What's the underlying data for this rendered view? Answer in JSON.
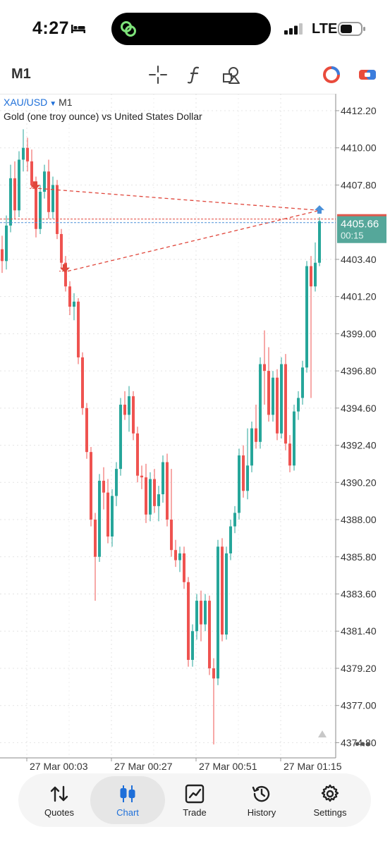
{
  "status_bar": {
    "time": "4:27",
    "network": "LTE"
  },
  "toolbar": {
    "timeframe": "M1",
    "icons": [
      "crosshair-icon",
      "function-icon",
      "objects-icon",
      "account-icon",
      "trade-toggle-icon"
    ]
  },
  "symbol": {
    "name": "XAU/USD",
    "timeframe": "M1",
    "description": "Gold (one troy ounce) vs United States Dollar"
  },
  "price_tag": {
    "price": "4405.66",
    "countdown": "00:15"
  },
  "colors": {
    "bull": "#26a69a",
    "bear": "#ef5350",
    "price_tag": "#55a79a",
    "bid_line": "#4a90d9",
    "ask_line": "#e0463b",
    "accent": "#1e6fd9"
  },
  "chart_data": {
    "type": "candlestick",
    "symbol": "XAU/USD",
    "timeframe": "M1",
    "x_ticks": [
      "27 Mar 00:03",
      "27 Mar 00:27",
      "27 Mar 00:51",
      "27 Mar 01:15"
    ],
    "y_ticks": [
      "4412.20",
      "4410.00",
      "4407.80",
      "4403.40",
      "4401.20",
      "4399.00",
      "4396.80",
      "4394.60",
      "4392.40",
      "4390.20",
      "4388.00",
      "4385.80",
      "4383.60",
      "4381.40",
      "4379.20",
      "4377.00",
      "4374.80"
    ],
    "y_range": [
      4373.9,
      4413.2
    ],
    "current_price": 4405.66,
    "grid": true,
    "candles": [
      {
        "o": 4404.0,
        "h": 4404.8,
        "l": 4402.6,
        "c": 4403.3
      },
      {
        "o": 4403.3,
        "h": 4406.0,
        "l": 4402.8,
        "c": 4405.4
      },
      {
        "o": 4405.4,
        "h": 4409.0,
        "l": 4405.0,
        "c": 4408.2
      },
      {
        "o": 4408.2,
        "h": 4409.2,
        "l": 4405.8,
        "c": 4406.3
      },
      {
        "o": 4406.3,
        "h": 4409.8,
        "l": 4405.9,
        "c": 4409.3
      },
      {
        "o": 4409.3,
        "h": 4411.1,
        "l": 4408.6,
        "c": 4410.0
      },
      {
        "o": 4410.0,
        "h": 4410.6,
        "l": 4408.6,
        "c": 4409.2
      },
      {
        "o": 4409.2,
        "h": 4409.9,
        "l": 4407.6,
        "c": 4407.8
      },
      {
        "o": 4407.8,
        "h": 4408.3,
        "l": 4404.7,
        "c": 4405.2
      },
      {
        "o": 4405.2,
        "h": 4407.8,
        "l": 4404.9,
        "c": 4407.4
      },
      {
        "o": 4407.4,
        "h": 4409.0,
        "l": 4407.0,
        "c": 4408.6
      },
      {
        "o": 4408.6,
        "h": 4409.3,
        "l": 4405.8,
        "c": 4406.2
      },
      {
        "o": 4406.2,
        "h": 4408.3,
        "l": 4405.8,
        "c": 4407.8
      },
      {
        "o": 4407.8,
        "h": 4408.1,
        "l": 4404.6,
        "c": 4404.9
      },
      {
        "o": 4404.9,
        "h": 4405.2,
        "l": 4402.8,
        "c": 4403.2
      },
      {
        "o": 4403.2,
        "h": 4403.6,
        "l": 4401.5,
        "c": 4401.8
      },
      {
        "o": 4401.8,
        "h": 4402.1,
        "l": 4400.1,
        "c": 4400.6
      },
      {
        "o": 4400.6,
        "h": 4401.4,
        "l": 4399.8,
        "c": 4400.9
      },
      {
        "o": 4400.9,
        "h": 4401.1,
        "l": 4397.2,
        "c": 4397.6
      },
      {
        "o": 4397.6,
        "h": 4397.9,
        "l": 4394.2,
        "c": 4394.6
      },
      {
        "o": 4394.6,
        "h": 4394.9,
        "l": 4391.6,
        "c": 4392.0
      },
      {
        "o": 4392.0,
        "h": 4392.3,
        "l": 4387.6,
        "c": 4388.0
      },
      {
        "o": 4388.0,
        "h": 4388.4,
        "l": 4383.2,
        "c": 4385.8
      },
      {
        "o": 4385.8,
        "h": 4390.7,
        "l": 4385.5,
        "c": 4390.3
      },
      {
        "o": 4390.3,
        "h": 4391.1,
        "l": 4388.6,
        "c": 4389.6
      },
      {
        "o": 4389.6,
        "h": 4390.4,
        "l": 4386.6,
        "c": 4387.0
      },
      {
        "o": 4387.0,
        "h": 4389.8,
        "l": 4386.4,
        "c": 4389.4
      },
      {
        "o": 4389.4,
        "h": 4391.4,
        "l": 4388.8,
        "c": 4391.0
      },
      {
        "o": 4391.0,
        "h": 4395.2,
        "l": 4390.6,
        "c": 4394.8
      },
      {
        "o": 4394.8,
        "h": 4395.6,
        "l": 4393.9,
        "c": 4394.2
      },
      {
        "o": 4394.2,
        "h": 4395.9,
        "l": 4393.2,
        "c": 4395.3
      },
      {
        "o": 4395.3,
        "h": 4395.6,
        "l": 4392.7,
        "c": 4393.1
      },
      {
        "o": 4393.1,
        "h": 4393.5,
        "l": 4390.2,
        "c": 4390.6
      },
      {
        "o": 4390.6,
        "h": 4391.2,
        "l": 4389.8,
        "c": 4390.5
      },
      {
        "o": 4390.5,
        "h": 4391.3,
        "l": 4387.8,
        "c": 4388.3
      },
      {
        "o": 4388.3,
        "h": 4390.8,
        "l": 4387.9,
        "c": 4390.4
      },
      {
        "o": 4390.4,
        "h": 4391.0,
        "l": 4388.4,
        "c": 4388.8
      },
      {
        "o": 4388.8,
        "h": 4390.0,
        "l": 4387.9,
        "c": 4389.5
      },
      {
        "o": 4389.5,
        "h": 4391.8,
        "l": 4389.0,
        "c": 4391.4
      },
      {
        "o": 4391.4,
        "h": 4391.9,
        "l": 4387.6,
        "c": 4388.0
      },
      {
        "o": 4388.0,
        "h": 4391.0,
        "l": 4385.8,
        "c": 4386.2
      },
      {
        "o": 4386.2,
        "h": 4386.8,
        "l": 4385.2,
        "c": 4385.6
      },
      {
        "o": 4385.6,
        "h": 4386.4,
        "l": 4384.9,
        "c": 4386.0
      },
      {
        "o": 4386.0,
        "h": 4386.4,
        "l": 4383.9,
        "c": 4384.3
      },
      {
        "o": 4384.3,
        "h": 4384.6,
        "l": 4379.3,
        "c": 4379.7
      },
      {
        "o": 4379.7,
        "h": 4381.8,
        "l": 4379.3,
        "c": 4381.4
      },
      {
        "o": 4381.4,
        "h": 4383.6,
        "l": 4380.9,
        "c": 4383.2
      },
      {
        "o": 4383.2,
        "h": 4383.8,
        "l": 4380.8,
        "c": 4381.8
      },
      {
        "o": 4381.8,
        "h": 4383.6,
        "l": 4381.4,
        "c": 4383.2
      },
      {
        "o": 4383.2,
        "h": 4383.5,
        "l": 4378.8,
        "c": 4379.2
      },
      {
        "o": 4379.2,
        "h": 4379.8,
        "l": 4374.7,
        "c": 4378.6
      },
      {
        "o": 4378.6,
        "h": 4386.8,
        "l": 4378.2,
        "c": 4386.4
      },
      {
        "o": 4386.4,
        "h": 4386.9,
        "l": 4380.8,
        "c": 4381.2
      },
      {
        "o": 4381.2,
        "h": 4386.4,
        "l": 4380.9,
        "c": 4386.0
      },
      {
        "o": 4386.0,
        "h": 4388.0,
        "l": 4385.6,
        "c": 4387.6
      },
      {
        "o": 4387.6,
        "h": 4388.8,
        "l": 4387.2,
        "c": 4388.4
      },
      {
        "o": 4388.4,
        "h": 4392.2,
        "l": 4388.0,
        "c": 4391.8
      },
      {
        "o": 4391.8,
        "h": 4392.4,
        "l": 4389.3,
        "c": 4389.7
      },
      {
        "o": 4389.7,
        "h": 4393.4,
        "l": 4389.2,
        "c": 4391.2
      },
      {
        "o": 4391.2,
        "h": 4393.8,
        "l": 4390.8,
        "c": 4393.4
      },
      {
        "o": 4393.4,
        "h": 4394.8,
        "l": 4392.2,
        "c": 4392.6
      },
      {
        "o": 4392.6,
        "h": 4397.6,
        "l": 4392.2,
        "c": 4397.2
      },
      {
        "o": 4397.2,
        "h": 4399.2,
        "l": 4394.8,
        "c": 4396.8
      },
      {
        "o": 4396.8,
        "h": 4398.2,
        "l": 4393.8,
        "c": 4394.2
      },
      {
        "o": 4394.2,
        "h": 4396.8,
        "l": 4393.8,
        "c": 4396.4
      },
      {
        "o": 4396.4,
        "h": 4396.9,
        "l": 4392.7,
        "c": 4393.1
      },
      {
        "o": 4393.1,
        "h": 4397.6,
        "l": 4392.8,
        "c": 4397.2
      },
      {
        "o": 4397.2,
        "h": 4397.8,
        "l": 4392.1,
        "c": 4392.5
      },
      {
        "o": 4392.5,
        "h": 4393.0,
        "l": 4390.8,
        "c": 4391.2
      },
      {
        "o": 4391.2,
        "h": 4394.8,
        "l": 4390.9,
        "c": 4394.4
      },
      {
        "o": 4394.4,
        "h": 4395.6,
        "l": 4393.9,
        "c": 4395.2
      },
      {
        "o": 4395.2,
        "h": 4397.4,
        "l": 4394.8,
        "c": 4397.0
      },
      {
        "o": 4397.0,
        "h": 4403.3,
        "l": 4396.7,
        "c": 4403.0
      },
      {
        "o": 4403.0,
        "h": 4403.6,
        "l": 4395.2,
        "c": 4401.8
      },
      {
        "o": 4401.8,
        "h": 4404.4,
        "l": 4401.5,
        "c": 4403.2
      },
      {
        "o": 4403.2,
        "h": 4405.9,
        "l": 4403.0,
        "c": 4405.66
      }
    ],
    "trades": [
      {
        "type": "sell",
        "open": 4407.6,
        "target": 4406.3
      },
      {
        "type": "sell",
        "open": 4402.7,
        "target": 4406.3
      }
    ],
    "buy_marker": 4406.1
  },
  "bottom_nav": [
    {
      "label": "Quotes",
      "icon": "quotes-icon",
      "active": false
    },
    {
      "label": "Chart",
      "icon": "chart-icon",
      "active": true
    },
    {
      "label": "Trade",
      "icon": "trade-icon",
      "active": false
    },
    {
      "label": "History",
      "icon": "history-icon",
      "active": false
    },
    {
      "label": "Settings",
      "icon": "settings-icon",
      "active": false
    }
  ]
}
